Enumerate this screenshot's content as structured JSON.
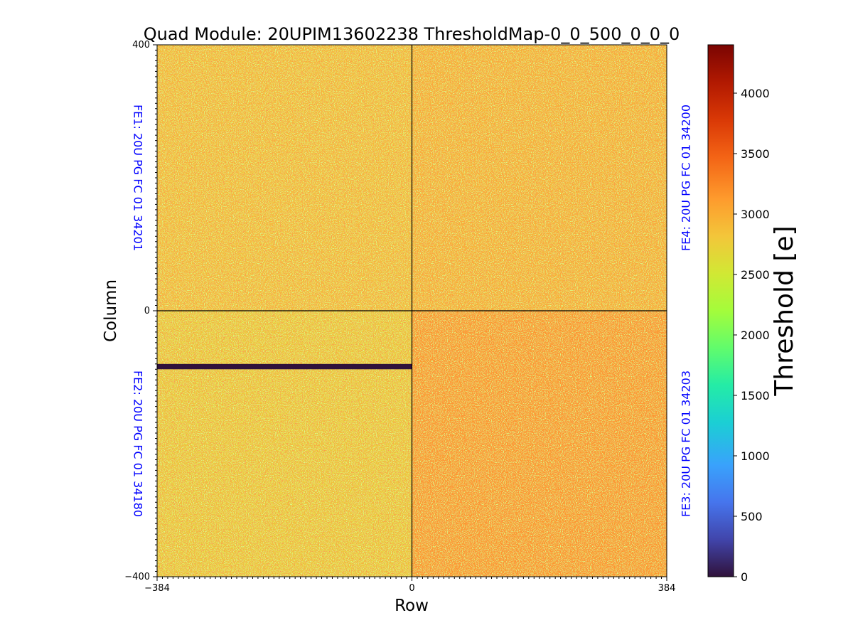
{
  "chart_data": {
    "type": "heatmap",
    "title": "Quad Module: 20UPIM13602238 ThresholdMap-0_0_500_0_0_0",
    "xlabel": "Row",
    "ylabel": "Column",
    "xlim": [
      -384,
      384
    ],
    "ylim": [
      -400,
      400
    ],
    "x_ticks": [
      -384,
      0,
      384
    ],
    "x_tick_labels": [
      "−384",
      "0",
      "384"
    ],
    "y_ticks": [
      -400,
      0,
      400
    ],
    "y_tick_labels": [
      "−400",
      "0",
      "400"
    ],
    "colorbar": {
      "label": "Threshold [e]",
      "range": [
        0,
        4400
      ],
      "ticks": [
        0,
        500,
        1000,
        1500,
        2000,
        2500,
        3000,
        3500,
        4000
      ],
      "tick_labels": [
        "0",
        "500",
        "1000",
        "1500",
        "2000",
        "2500",
        "3000",
        "3500",
        "4000"
      ],
      "colormap": "turbo"
    },
    "front_ends": [
      {
        "id": "FE1",
        "label": "FE1: 20U PG FC 01 34201",
        "position": "top-left",
        "x_range": [
          -384,
          0
        ],
        "y_range": [
          0,
          400
        ],
        "mean_threshold": 2850
      },
      {
        "id": "FE4",
        "label": "FE4: 20U PG FC 01 34200",
        "position": "top-right",
        "x_range": [
          0,
          384
        ],
        "y_range": [
          0,
          400
        ],
        "mean_threshold": 2950
      },
      {
        "id": "FE2",
        "label": "FE2: 20U PG FC 01 34180",
        "position": "bottom-left",
        "x_range": [
          -384,
          0
        ],
        "y_range": [
          -400,
          0
        ],
        "mean_threshold": 2750
      },
      {
        "id": "FE3",
        "label": "FE3: 20U PG FC 01 34203",
        "position": "bottom-right",
        "x_range": [
          0,
          384
        ],
        "y_range": [
          -400,
          0
        ],
        "mean_threshold": 3150
      }
    ],
    "dead_region": {
      "x_range": [
        -384,
        0
      ],
      "y_range": [
        -88,
        -80
      ],
      "value": 0
    },
    "label_color": "#0000ff"
  }
}
